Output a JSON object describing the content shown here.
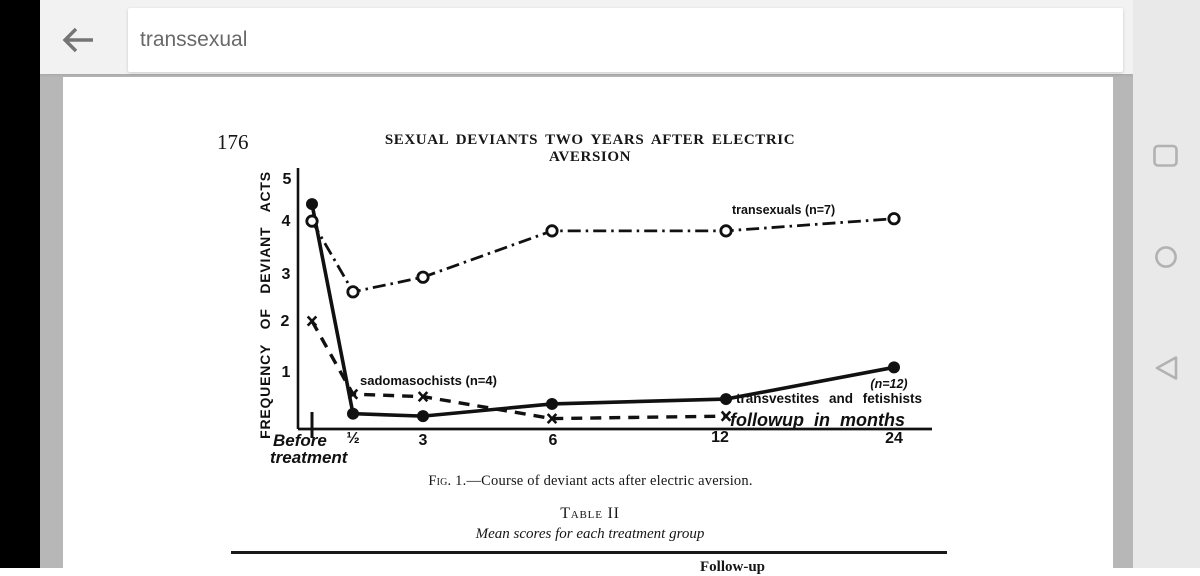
{
  "browser": {
    "search_query": "transsexual"
  },
  "nav_bar": {
    "recents": "recents",
    "home": "home",
    "back": "back"
  },
  "paper": {
    "page_number": "176",
    "running_title": "SEXUAL DEVIANTS TWO YEARS AFTER ELECTRIC AVERSION",
    "caption_prefix": "Fig. 1.",
    "caption_rest": "—Course of deviant acts after electric aversion.",
    "table_title": "Table II",
    "table_subtitle": "Mean scores for each treatment group",
    "next_section_partial": "Follow-up"
  },
  "chart_data": {
    "type": "line",
    "title": "",
    "ylabel": "FREQUENCY OF DEVIANT ACTS",
    "xlabel": "followup in months",
    "x_categories": [
      "Before treatment",
      "½",
      "3",
      "6",
      "12",
      "24"
    ],
    "x_months": [
      0,
      0.5,
      3,
      6,
      12,
      24
    ],
    "ylim": [
      0,
      5
    ],
    "yticks": [
      "5",
      "4",
      "3",
      "2",
      "1"
    ],
    "xticks": [
      "½",
      "3",
      "6",
      "12",
      "24"
    ],
    "before_label_line1": "Before",
    "before_label_line2": "treatment",
    "grid": false,
    "legend_position": "annotated-inline",
    "series": [
      {
        "name": "transexuals (n=7)",
        "label": "transexuals (n=7)",
        "marker": "open-circle",
        "line": "dash-dot",
        "values": [
          4.1,
          2.65,
          2.95,
          3.9,
          3.9,
          4.15
        ]
      },
      {
        "name": "transvestites and fetishists (n=12)",
        "label": "transvestites and fetishists",
        "label_n": "(n=12)",
        "marker": "filled-circle",
        "line": "solid",
        "values": [
          4.45,
          0.15,
          0.1,
          0.35,
          0.45,
          1.1
        ]
      },
      {
        "name": "sadomasochists (n=4)",
        "label": "sadomasochists (n=4)",
        "marker": "x",
        "line": "dashed",
        "values": [
          2.05,
          0.55,
          0.5,
          0.05,
          0.1,
          null
        ]
      }
    ]
  }
}
